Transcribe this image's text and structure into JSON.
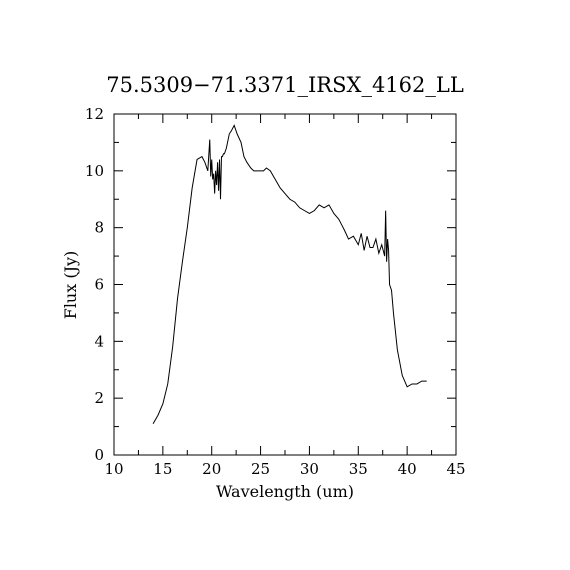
{
  "chart_data": {
    "type": "line",
    "title": "75.5309−71.3371_IRSX_4162_LL",
    "xlabel": "Wavelength (um)",
    "ylabel": "Flux (Jy)",
    "xlim": [
      10,
      45
    ],
    "ylim": [
      0,
      12
    ],
    "x_ticks": [
      10,
      15,
      20,
      25,
      30,
      35,
      40,
      45
    ],
    "y_ticks": [
      0,
      2,
      4,
      6,
      8,
      10,
      12
    ],
    "x_tick_labels": [
      "10",
      "15",
      "20",
      "25",
      "30",
      "35",
      "40",
      "45"
    ],
    "y_tick_labels": [
      "0",
      "2",
      "4",
      "6",
      "8",
      "10",
      "12"
    ],
    "grid": false,
    "series": [
      {
        "x": [
          14.0,
          14.5,
          15.0,
          15.5,
          16.0,
          16.5,
          17.0,
          17.5,
          18.0,
          18.5,
          19.0,
          19.3,
          19.6,
          19.8,
          19.9,
          20.0,
          20.1,
          20.2,
          20.3,
          20.4,
          20.5,
          20.6,
          20.7,
          20.8,
          20.9,
          21.0,
          21.1,
          21.2,
          21.3,
          21.5,
          21.8,
          22.0,
          22.3,
          22.6,
          23.0,
          23.3,
          23.6,
          24.0,
          24.3,
          24.6,
          25.0,
          25.3,
          25.6,
          26.0,
          26.5,
          27.0,
          27.5,
          28.0,
          28.5,
          29.0,
          29.5,
          30.0,
          30.5,
          31.0,
          31.5,
          32.0,
          32.5,
          33.0,
          33.3,
          33.6,
          34.0,
          34.5,
          35.0,
          35.3,
          35.6,
          35.9,
          36.2,
          36.5,
          36.8,
          37.1,
          37.4,
          37.7,
          37.8,
          37.9,
          38.0,
          38.1,
          38.2,
          38.4,
          38.6,
          39.0,
          39.5,
          40.0,
          40.5,
          41.0,
          41.5,
          42.0
        ],
        "y": [
          1.1,
          1.4,
          1.8,
          2.5,
          3.8,
          5.5,
          6.8,
          8.0,
          9.4,
          10.4,
          10.5,
          10.3,
          10.0,
          11.1,
          9.8,
          10.4,
          9.7,
          9.9,
          9.2,
          10.0,
          9.5,
          10.3,
          9.3,
          10.4,
          9.0,
          10.5,
          10.5,
          10.6,
          10.6,
          10.8,
          11.3,
          11.4,
          11.6,
          11.3,
          11.0,
          10.5,
          10.3,
          10.1,
          10.0,
          10.0,
          10.0,
          10.0,
          10.1,
          10.0,
          9.7,
          9.4,
          9.2,
          9.0,
          8.9,
          8.7,
          8.6,
          8.5,
          8.6,
          8.8,
          8.7,
          8.8,
          8.5,
          8.3,
          8.1,
          7.9,
          7.6,
          7.7,
          7.4,
          7.8,
          7.2,
          7.7,
          7.3,
          7.3,
          7.6,
          7.1,
          7.4,
          7.0,
          8.6,
          6.8,
          7.6,
          7.2,
          6.0,
          5.8,
          5.0,
          3.7,
          2.8,
          2.4,
          2.5,
          2.5,
          2.6,
          2.6
        ]
      }
    ]
  }
}
